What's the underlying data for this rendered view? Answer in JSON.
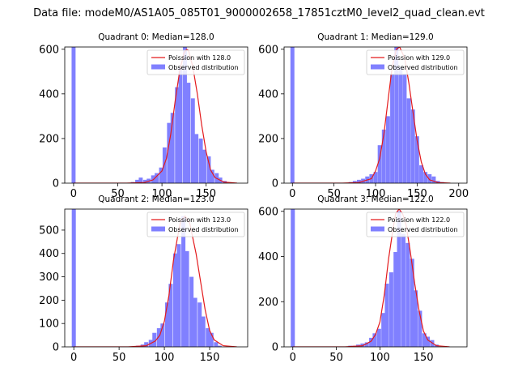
{
  "figure": {
    "suptitle": "Data file: modeM0/AS1A05_085T01_9000002658_17851cztM0_level2_quad_clean.evt"
  },
  "colors": {
    "hist": "#8080ff",
    "fit": "#e31a1c",
    "axis": "#000000",
    "legend_border": "#cccccc"
  },
  "chart_data": [
    {
      "type": "bar+line",
      "title": "Quadrant 0: Median=128.0",
      "legend": [
        "Poission with 128.0",
        "Observed distribution"
      ],
      "legend_position": "top-right",
      "xlim": [
        -10,
        197
      ],
      "ylim": [
        0,
        610
      ],
      "xticks": [
        0,
        50,
        100,
        150
      ],
      "yticks": [
        0,
        200,
        400,
        600
      ],
      "bin_width": 4.5,
      "hist_x": [
        0,
        67,
        72,
        76,
        81,
        85,
        90,
        94,
        99,
        103,
        108,
        112,
        117,
        121,
        126,
        130,
        135,
        139,
        144,
        148,
        153,
        157,
        162,
        166,
        171
      ],
      "hist_y": [
        610,
        5,
        15,
        25,
        15,
        20,
        35,
        45,
        70,
        160,
        270,
        315,
        430,
        520,
        610,
        450,
        380,
        220,
        200,
        150,
        120,
        60,
        45,
        25,
        10
      ],
      "fit_x": [
        0,
        60,
        80,
        90,
        100,
        105,
        110,
        115,
        120,
        125,
        128,
        130,
        135,
        140,
        145,
        150,
        155,
        160,
        170,
        185
      ],
      "fit_y": [
        0,
        0,
        3,
        15,
        55,
        110,
        220,
        370,
        500,
        585,
        600,
        595,
        520,
        400,
        260,
        140,
        60,
        25,
        5,
        0
      ]
    },
    {
      "type": "bar+line",
      "title": "Quadrant 1: Median=129.0",
      "legend": [
        "Poission with 129.0",
        "Observed distribution"
      ],
      "legend_position": "top-right",
      "xlim": [
        -10,
        210
      ],
      "ylim": [
        0,
        610
      ],
      "xticks": [
        0,
        50,
        100,
        150,
        200
      ],
      "yticks": [
        0,
        200,
        400,
        600
      ],
      "bin_width": 4.8,
      "hist_x": [
        0,
        70,
        75,
        80,
        85,
        90,
        95,
        100,
        105,
        110,
        115,
        120,
        125,
        130,
        135,
        140,
        145,
        150,
        155,
        160,
        165,
        170,
        175,
        180
      ],
      "hist_y": [
        610,
        5,
        10,
        15,
        20,
        30,
        40,
        50,
        170,
        240,
        300,
        490,
        610,
        520,
        490,
        380,
        330,
        210,
        80,
        50,
        40,
        30,
        10,
        5
      ],
      "fit_x": [
        0,
        60,
        80,
        95,
        100,
        105,
        110,
        115,
        120,
        125,
        129,
        135,
        140,
        145,
        150,
        155,
        160,
        165,
        175,
        190
      ],
      "fit_y": [
        0,
        0,
        3,
        20,
        55,
        110,
        220,
        370,
        520,
        600,
        610,
        560,
        450,
        320,
        190,
        95,
        40,
        15,
        3,
        0
      ]
    },
    {
      "type": "bar+line",
      "title": "Quadrant 2: Median=123.0",
      "legend": [
        "Poission with 123.0",
        "Observed distribution"
      ],
      "legend_position": "top-right",
      "xlim": [
        -10,
        192
      ],
      "ylim": [
        0,
        590
      ],
      "xticks": [
        0,
        50,
        100,
        150
      ],
      "yticks": [
        0,
        100,
        200,
        300,
        400,
        500
      ],
      "bin_width": 4.5,
      "hist_x": [
        0,
        71,
        76,
        80,
        85,
        89,
        94,
        98,
        103,
        107,
        112,
        116,
        121,
        125,
        130,
        134,
        139,
        143,
        148,
        152,
        157,
        161
      ],
      "hist_y": [
        590,
        5,
        10,
        20,
        30,
        60,
        80,
        100,
        190,
        270,
        400,
        440,
        560,
        410,
        300,
        210,
        190,
        130,
        80,
        60,
        20,
        5
      ],
      "fit_x": [
        0,
        60,
        80,
        90,
        95,
        100,
        105,
        110,
        115,
        118,
        123,
        128,
        135,
        140,
        145,
        150,
        155,
        165,
        180
      ],
      "fit_y": [
        0,
        0,
        5,
        25,
        50,
        110,
        220,
        370,
        480,
        540,
        560,
        530,
        400,
        280,
        160,
        70,
        30,
        5,
        0
      ]
    },
    {
      "type": "bar+line",
      "title": "Quadrant 3: Median=122.0",
      "legend": [
        "Poission with 122.0",
        "Observed distribution"
      ],
      "legend_position": "top-right",
      "xlim": [
        -10,
        200
      ],
      "ylim": [
        0,
        610
      ],
      "xticks": [
        0,
        50,
        100,
        150
      ],
      "yticks": [
        0,
        200,
        400,
        600
      ],
      "bin_width": 4.7,
      "hist_x": [
        0,
        66,
        71,
        75,
        80,
        85,
        90,
        94,
        99,
        104,
        108,
        113,
        118,
        122,
        127,
        132,
        137,
        141,
        146,
        151,
        155,
        160,
        165
      ],
      "hist_y": [
        610,
        5,
        5,
        10,
        15,
        20,
        40,
        60,
        80,
        150,
        280,
        330,
        420,
        600,
        500,
        460,
        390,
        250,
        160,
        60,
        45,
        30,
        10
      ],
      "fit_x": [
        0,
        60,
        80,
        90,
        95,
        100,
        105,
        110,
        115,
        118,
        122,
        126,
        130,
        135,
        140,
        145,
        150,
        155,
        165,
        180
      ],
      "fit_y": [
        0,
        0,
        5,
        25,
        55,
        110,
        230,
        390,
        520,
        590,
        610,
        590,
        540,
        420,
        280,
        160,
        70,
        30,
        5,
        0
      ]
    }
  ]
}
